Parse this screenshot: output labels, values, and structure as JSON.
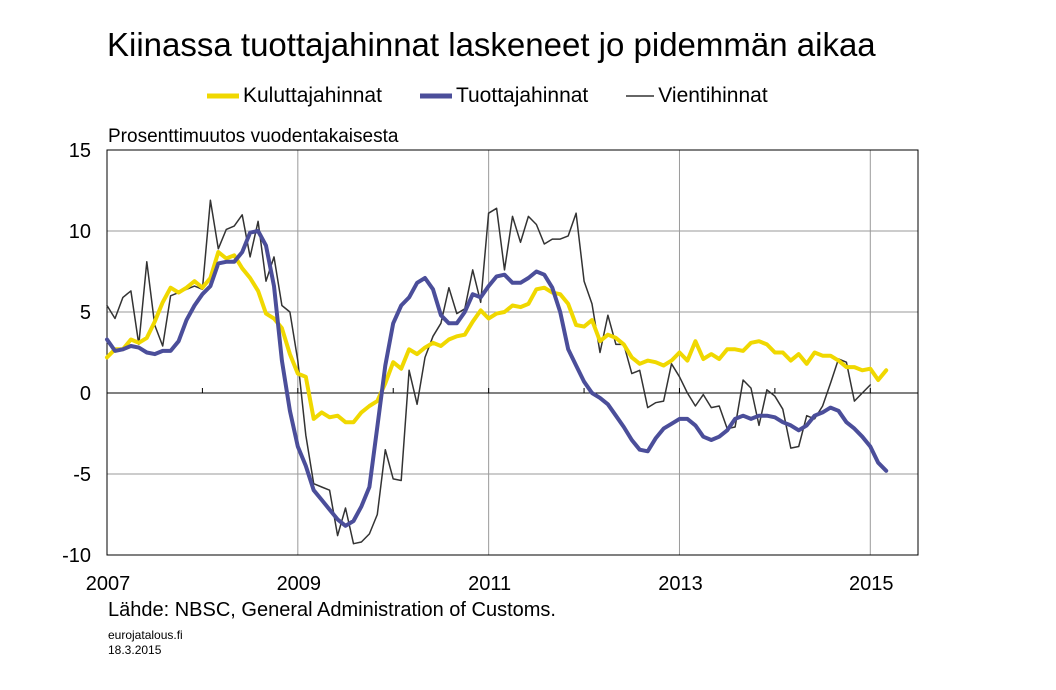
{
  "page": {
    "site": "eurojatalous.fi",
    "date": "18.3.2015"
  },
  "chart_data": {
    "type": "line",
    "title": "Kiinassa tuottajahinnat laskeneet jo pidemmän aikaa",
    "ylabel": "Prosenttimuutos vuodentakaisesta",
    "xlabel": "",
    "source": "Lähde: NBSC, General Administration  of Customs.",
    "xlim": [
      2007.0,
      2015.5
    ],
    "ylim": [
      -10,
      15
    ],
    "yticks": [
      15,
      10,
      5,
      0,
      -5,
      -10
    ],
    "xticks": [
      2007,
      2009,
      2011,
      2013,
      2015
    ],
    "grid": true,
    "legend_position": "top",
    "series": [
      {
        "name": "Kuluttajahinnat",
        "color": "#f0d800",
        "width": 4,
        "start": 2007.0,
        "values": [
          2.2,
          2.7,
          2.7,
          3.3,
          3.1,
          3.4,
          4.4,
          5.6,
          6.5,
          6.2,
          6.5,
          6.9,
          6.5,
          7.1,
          8.7,
          8.3,
          8.5,
          7.7,
          7.1,
          6.3,
          4.9,
          4.6,
          4.0,
          2.4,
          1.2,
          1.0,
          -1.6,
          -1.2,
          -1.5,
          -1.4,
          -1.8,
          -1.8,
          -1.2,
          -0.8,
          -0.5,
          0.6,
          1.9,
          1.5,
          2.7,
          2.4,
          2.8,
          3.1,
          2.9,
          3.3,
          3.5,
          3.6,
          4.4,
          5.1,
          4.6,
          4.9,
          5.0,
          5.4,
          5.3,
          5.5,
          6.4,
          6.5,
          6.2,
          6.1,
          5.5,
          4.2,
          4.1,
          4.5,
          3.2,
          3.6,
          3.4,
          3.0,
          2.2,
          1.8,
          2.0,
          1.9,
          1.7,
          2.0,
          2.5,
          2.0,
          3.2,
          2.1,
          2.4,
          2.1,
          2.7,
          2.7,
          2.6,
          3.1,
          3.2,
          3.0,
          2.5,
          2.5,
          2.0,
          2.4,
          1.8,
          2.5,
          2.3,
          2.3,
          2.0,
          1.6,
          1.6,
          1.4,
          1.5,
          0.8,
          1.4
        ]
      },
      {
        "name": "Tuottajahinnat",
        "color": "#4b4e9a",
        "width": 4,
        "start": 2007.0,
        "values": [
          3.3,
          2.6,
          2.7,
          2.9,
          2.8,
          2.5,
          2.4,
          2.6,
          2.6,
          3.2,
          4.5,
          5.4,
          6.1,
          6.6,
          8.0,
          8.1,
          8.1,
          8.7,
          9.9,
          10.0,
          9.1,
          6.6,
          2.0,
          -1.1,
          -3.3,
          -4.5,
          -6.0,
          -6.6,
          -7.2,
          -7.8,
          -8.2,
          -7.9,
          -7.0,
          -5.8,
          -2.1,
          1.7,
          4.3,
          5.4,
          5.9,
          6.8,
          7.1,
          6.4,
          4.8,
          4.3,
          4.3,
          5.0,
          6.1,
          5.9,
          6.6,
          7.2,
          7.3,
          6.8,
          6.8,
          7.1,
          7.5,
          7.3,
          6.5,
          5.0,
          2.7,
          1.7,
          0.7,
          0.0,
          -0.3,
          -0.7,
          -1.4,
          -2.1,
          -2.9,
          -3.5,
          -3.6,
          -2.8,
          -2.2,
          -1.9,
          -1.6,
          -1.6,
          -2.0,
          -2.7,
          -2.9,
          -2.7,
          -2.3,
          -1.6,
          -1.4,
          -1.6,
          -1.4,
          -1.4,
          -1.5,
          -1.8,
          -2.0,
          -2.3,
          -2.0,
          -1.4,
          -1.2,
          -0.9,
          -1.1,
          -1.8,
          -2.2,
          -2.7,
          -3.3,
          -4.3,
          -4.8
        ]
      },
      {
        "name": "Vientihinnat",
        "color": "#333333",
        "width": 1.5,
        "start": 2007.0,
        "values": [
          5.4,
          4.6,
          5.9,
          6.3,
          3.0,
          8.1,
          4.2,
          2.9,
          6.0,
          6.2,
          6.4,
          6.6,
          6.4,
          11.9,
          8.9,
          10.1,
          10.3,
          11.0,
          8.4,
          10.6,
          6.9,
          8.4,
          5.4,
          5.0,
          2.0,
          -2.6,
          -5.6,
          -5.8,
          -6.0,
          -8.8,
          -7.1,
          -9.3,
          -9.2,
          -8.7,
          -7.5,
          -3.5,
          -5.3,
          -5.4,
          1.4,
          -0.7,
          2.2,
          3.5,
          4.3,
          6.5,
          4.9,
          5.2,
          7.6,
          5.6,
          11.1,
          11.4,
          7.6,
          10.9,
          9.3,
          10.9,
          10.4,
          9.2,
          9.5,
          9.5,
          9.7,
          11.1,
          6.9,
          5.5,
          2.5,
          4.8,
          3.0,
          3.0,
          1.2,
          1.4,
          -0.9,
          -0.6,
          -0.5,
          1.8,
          1.0,
          0.0,
          -0.8,
          -0.1,
          -0.9,
          -0.8,
          -2.2,
          -2.1,
          0.8,
          0.3,
          -2.0,
          0.2,
          -0.2,
          -1.0,
          -3.4,
          -3.3,
          -1.4,
          -1.6,
          -0.8,
          0.6,
          2.1,
          1.9,
          -0.5,
          0.0,
          0.5
        ]
      }
    ]
  }
}
